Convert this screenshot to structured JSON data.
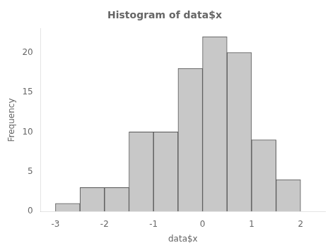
{
  "chart_data": {
    "type": "histogram",
    "title": "Histogram of data$x",
    "xlabel": "data$x",
    "ylabel": "Frequency",
    "bins": [
      -3.0,
      -2.5,
      -2.0,
      -1.5,
      -1.0,
      -0.5,
      0.0,
      0.5,
      1.0,
      1.5,
      2.0
    ],
    "values": [
      1,
      3,
      3,
      10,
      10,
      18,
      22,
      20,
      9,
      4
    ],
    "color": "#c8c8c8",
    "xlim": [
      -3.3,
      2.5
    ],
    "ylim": [
      0,
      23
    ],
    "xticks": [
      -3,
      -2,
      -1,
      0,
      1,
      2
    ],
    "yticks": [
      0,
      5,
      10,
      15,
      20
    ],
    "grid": false
  }
}
